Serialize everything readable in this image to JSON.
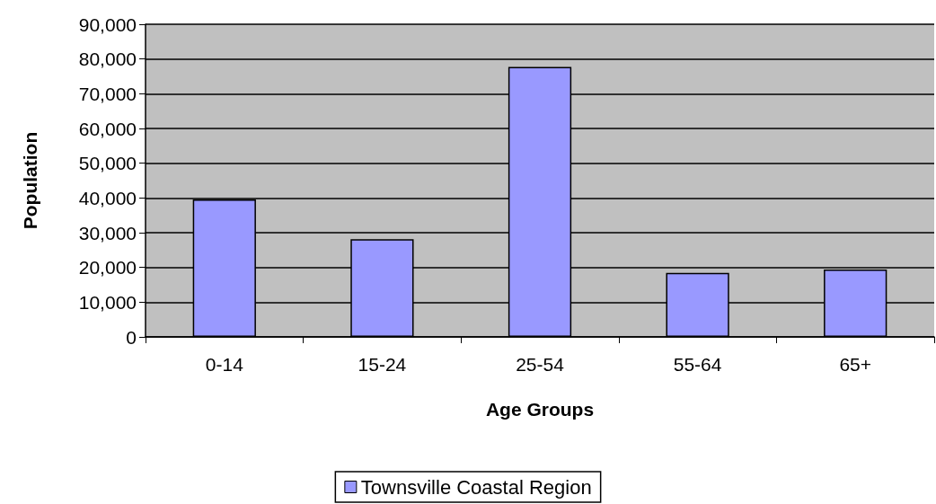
{
  "chart_data": {
    "type": "bar",
    "xlabel": "Age Groups",
    "ylabel": "Population",
    "categories": [
      "0-14",
      "15-24",
      "25-54",
      "55-64",
      "65+"
    ],
    "series": [
      {
        "name": "Townsville Coastal Region",
        "color": "#9999ff",
        "values": [
          39600,
          28100,
          77700,
          18400,
          19400
        ]
      }
    ],
    "ylim": [
      0,
      90000
    ],
    "yticks": [
      0,
      {
        "value": 10000,
        "label": "10,000"
      },
      {
        "value": 20000,
        "label": "20,000"
      },
      {
        "value": 30000,
        "label": "30,000"
      },
      {
        "value": 40000,
        "label": "40,000"
      },
      {
        "value": 50000,
        "label": "50,000"
      },
      {
        "value": 60000,
        "label": "60,000"
      },
      {
        "value": 70000,
        "label": "70,000"
      },
      {
        "value": 80000,
        "label": "80,000"
      },
      {
        "value": 90000,
        "label": "90,000"
      }
    ],
    "grid": "y",
    "legend": "bottom"
  }
}
